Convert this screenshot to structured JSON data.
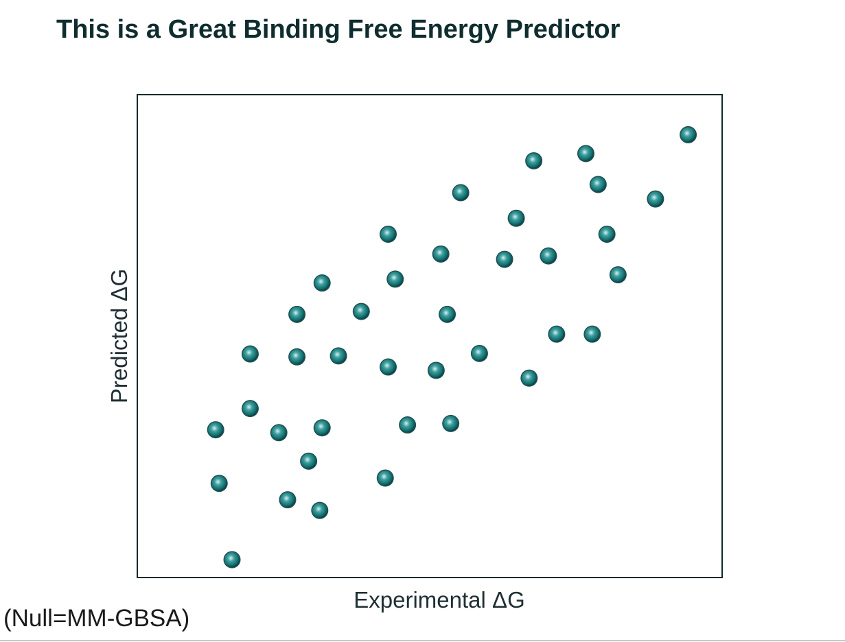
{
  "slide": {
    "title": "This is a Great Binding Free Energy Predictor",
    "footnote": "(Null=MM-GBSA)"
  },
  "colors": {
    "point": "#0f6b6b",
    "point_highlight": "#d9f2f2",
    "point_dark": "#0a3d40",
    "frame": "#0e2a2c",
    "title": "#0f2d2f"
  },
  "chart_data": {
    "type": "scatter",
    "title": "",
    "xlabel": "Experimental ΔG",
    "ylabel": "Predicted ΔG",
    "xlim": [
      0,
      100
    ],
    "ylim": [
      0,
      100
    ],
    "grid": false,
    "legend": "none",
    "ticks": false,
    "series": [
      {
        "points": [
          [
            16.2,
            3.7
          ],
          [
            14.0,
            19.5
          ],
          [
            25.7,
            16.1
          ],
          [
            31.2,
            13.9
          ],
          [
            42.4,
            20.6
          ],
          [
            13.4,
            30.6
          ],
          [
            19.3,
            35.0
          ],
          [
            24.2,
            30.0
          ],
          [
            29.3,
            24.1
          ],
          [
            31.6,
            31.0
          ],
          [
            46.2,
            31.6
          ],
          [
            53.6,
            31.9
          ],
          [
            19.3,
            46.3
          ],
          [
            27.3,
            45.7
          ],
          [
            34.4,
            45.9
          ],
          [
            42.9,
            43.6
          ],
          [
            51.1,
            42.9
          ],
          [
            58.5,
            46.4
          ],
          [
            67.0,
            41.3
          ],
          [
            27.3,
            54.5
          ],
          [
            38.3,
            55.1
          ],
          [
            53.0,
            54.5
          ],
          [
            31.6,
            61.0
          ],
          [
            44.1,
            61.8
          ],
          [
            51.9,
            67.0
          ],
          [
            42.9,
            71.1
          ],
          [
            62.8,
            65.9
          ],
          [
            70.3,
            66.6
          ],
          [
            64.8,
            74.4
          ],
          [
            55.3,
            79.7
          ],
          [
            71.7,
            50.4
          ],
          [
            77.8,
            50.4
          ],
          [
            82.2,
            62.7
          ],
          [
            80.3,
            71.1
          ],
          [
            78.8,
            81.4
          ],
          [
            67.8,
            86.3
          ],
          [
            76.7,
            87.8
          ],
          [
            88.6,
            78.4
          ],
          [
            94.2,
            91.7
          ]
        ]
      }
    ]
  }
}
